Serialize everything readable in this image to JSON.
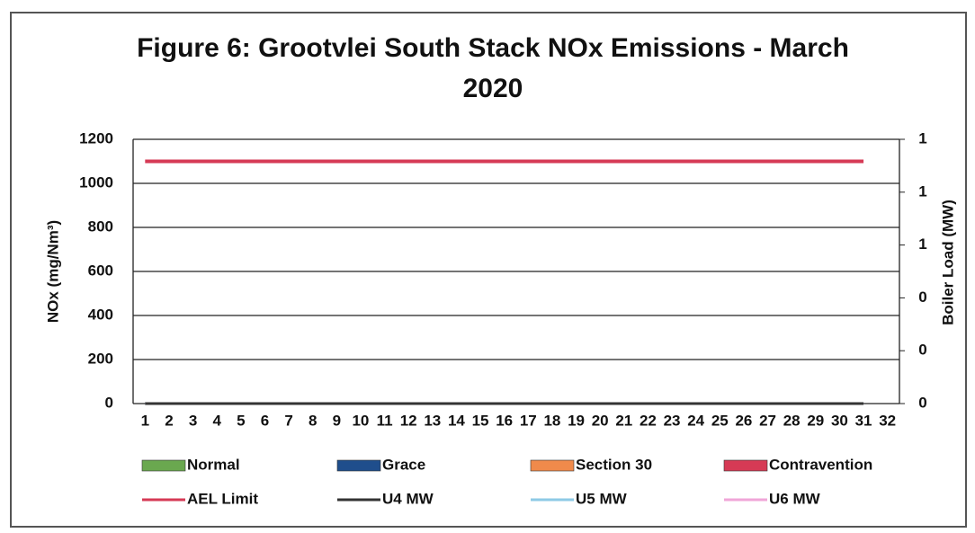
{
  "chart_data": {
    "type": "line",
    "title": "Figure 6: Grootvlei South Stack NOx Emissions -  March",
    "title_line2": "2020",
    "y_label": "NOx (mg/Nm³)",
    "y2_label": "Boiler Load (MW)",
    "categories": [
      "1",
      "2",
      "3",
      "4",
      "5",
      "6",
      "7",
      "8",
      "9",
      "10",
      "11",
      "12",
      "13",
      "14",
      "15",
      "16",
      "17",
      "18",
      "19",
      "20",
      "21",
      "22",
      "23",
      "24",
      "25",
      "26",
      "27",
      "28",
      "29",
      "30",
      "31",
      "32"
    ],
    "ylim": [
      0,
      1200
    ],
    "yticks": [
      0,
      200,
      400,
      600,
      800,
      1000,
      1200
    ],
    "y2lim": [
      0,
      1
    ],
    "y2ticks": [
      0,
      {
        "value": 0.2,
        "label": "0"
      },
      {
        "value": 0.4,
        "label": "0"
      },
      {
        "value": 0.6,
        "label": "1"
      },
      {
        "value": 0.8,
        "label": "1"
      },
      {
        "value": 1,
        "label": "1"
      }
    ],
    "grid": true,
    "bar_series": [
      {
        "name": "Normal",
        "color": "#6aa84f",
        "values": [
          null,
          null,
          null,
          null,
          null,
          null,
          null,
          null,
          null,
          null,
          null,
          null,
          null,
          null,
          null,
          null,
          null,
          null,
          null,
          null,
          null,
          null,
          null,
          null,
          null,
          null,
          null,
          null,
          null,
          null,
          null,
          null
        ]
      },
      {
        "name": "Grace",
        "color": "#1f4e8c",
        "values": [
          null,
          null,
          null,
          null,
          null,
          null,
          null,
          null,
          null,
          null,
          null,
          null,
          null,
          null,
          null,
          null,
          null,
          null,
          null,
          null,
          null,
          null,
          null,
          null,
          null,
          null,
          null,
          null,
          null,
          null,
          null,
          null
        ]
      },
      {
        "name": "Section 30",
        "color": "#f08a4b",
        "values": [
          null,
          null,
          null,
          null,
          null,
          null,
          null,
          null,
          null,
          null,
          null,
          null,
          null,
          null,
          null,
          null,
          null,
          null,
          null,
          null,
          null,
          null,
          null,
          null,
          null,
          null,
          null,
          null,
          null,
          null,
          null,
          null
        ]
      },
      {
        "name": "Contravention",
        "color": "#d63a55",
        "values": [
          null,
          null,
          null,
          null,
          null,
          null,
          null,
          null,
          null,
          null,
          null,
          null,
          null,
          null,
          null,
          null,
          null,
          null,
          null,
          null,
          null,
          null,
          null,
          null,
          null,
          null,
          null,
          null,
          null,
          null,
          null,
          null
        ]
      }
    ],
    "series": [
      {
        "name": "AEL Limit",
        "color": "#d63a55",
        "values": [
          1100,
          1100,
          1100,
          1100,
          1100,
          1100,
          1100,
          1100,
          1100,
          1100,
          1100,
          1100,
          1100,
          1100,
          1100,
          1100,
          1100,
          1100,
          1100,
          1100,
          1100,
          1100,
          1100,
          1100,
          1100,
          1100,
          1100,
          1100,
          1100,
          1100,
          1100,
          null
        ]
      },
      {
        "name": "U4 MW",
        "color": "#333333",
        "axis": "y2",
        "values": [
          0,
          0,
          0,
          0,
          0,
          0,
          0,
          0,
          0,
          0,
          0,
          0,
          0,
          0,
          0,
          0,
          0,
          0,
          0,
          0,
          0,
          0,
          0,
          0,
          0,
          0,
          0,
          0,
          0,
          0,
          0,
          null
        ]
      },
      {
        "name": "U5 MW",
        "color": "#8ecae6",
        "axis": "y2",
        "values": [
          0,
          0,
          0,
          0,
          0,
          0,
          0,
          0,
          0,
          0,
          0,
          0,
          0,
          0,
          0,
          0,
          0,
          0,
          0,
          0,
          0,
          0,
          0,
          0,
          0,
          0,
          0,
          0,
          0,
          0,
          0,
          null
        ]
      },
      {
        "name": "U6 MW",
        "color": "#f0a6d8",
        "axis": "y2",
        "values": [
          0,
          0,
          0,
          0,
          0,
          0,
          0,
          0,
          0,
          0,
          0,
          0,
          0,
          0,
          0,
          0,
          0,
          0,
          0,
          0,
          0,
          0,
          0,
          0,
          0,
          0,
          0,
          0,
          0,
          0,
          0,
          null
        ]
      }
    ]
  }
}
